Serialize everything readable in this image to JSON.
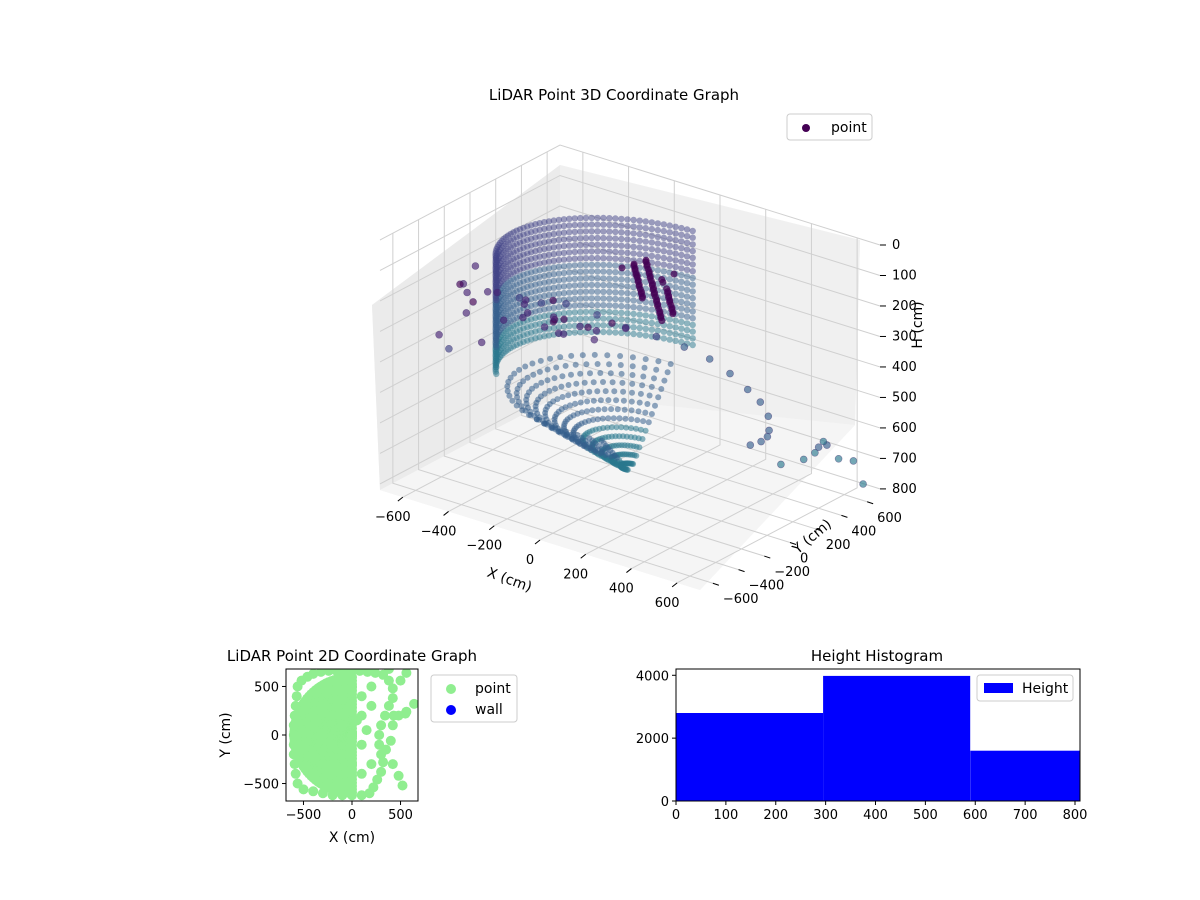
{
  "chart_data": [
    {
      "type": "scatter",
      "dimensions": 3,
      "title": "LiDAR Point 3D Coordinate Graph",
      "xlabel": "X (cm)",
      "ylabel": "Y (cm)",
      "zlabel": "H (cm)",
      "xlim": [
        -700,
        700
      ],
      "ylim": [
        -700,
        700
      ],
      "zlim": [
        820,
        0
      ],
      "x_ticks": [
        -600,
        -400,
        -200,
        0,
        200,
        400,
        600
      ],
      "y_ticks": [
        -600,
        -400,
        -200,
        0,
        200,
        400,
        600
      ],
      "z_ticks": [
        0,
        100,
        200,
        300,
        400,
        500,
        600,
        700,
        800
      ],
      "z_inverted": true,
      "grid": true,
      "legend": [
        "point"
      ],
      "legend_position": "top-right",
      "colormap": "viridis",
      "series": [
        {
          "name": "point",
          "points": [
            [
              -520,
              -560,
              300
            ],
            [
              -500,
              -520,
              350
            ],
            [
              -560,
              -300,
              200
            ],
            [
              -480,
              -420,
              250
            ],
            [
              -420,
              -360,
              180
            ],
            [
              -440,
              -540,
              120
            ],
            [
              -360,
              -580,
              150
            ],
            [
              -300,
              -620,
              260
            ],
            [
              -260,
              -520,
              200
            ],
            [
              -200,
              -440,
              180
            ],
            [
              -160,
              -380,
              230
            ],
            [
              -100,
              -420,
              120
            ],
            [
              -60,
              -480,
              160
            ],
            [
              -20,
              -560,
              140
            ],
            [
              60,
              -620,
              100
            ],
            [
              120,
              -540,
              130
            ],
            [
              180,
              -460,
              120
            ],
            [
              -600,
              -200,
              260
            ],
            [
              -620,
              -100,
              200
            ],
            [
              -580,
              0,
              300
            ],
            [
              -540,
              100,
              330
            ],
            [
              -500,
              200,
              360
            ],
            [
              -460,
              320,
              380
            ],
            [
              -380,
              420,
              420
            ],
            [
              -300,
              500,
              460
            ],
            [
              -200,
              560,
              480
            ],
            [
              -100,
              600,
              500
            ],
            [
              0,
              620,
              520
            ],
            [
              100,
              600,
              540
            ],
            [
              200,
              560,
              560
            ],
            [
              300,
              480,
              560
            ],
            [
              380,
              400,
              570
            ],
            [
              440,
              300,
              580
            ],
            [
              500,
              180,
              560
            ],
            [
              540,
              60,
              540
            ],
            [
              560,
              -60,
              520
            ],
            [
              600,
              400,
              620
            ],
            [
              620,
              520,
              680
            ],
            [
              640,
              600,
              700
            ],
            [
              580,
              500,
              640
            ],
            [
              520,
              580,
              660
            ],
            [
              460,
              620,
              720
            ],
            [
              400,
              640,
              760
            ],
            [
              660,
              640,
              780
            ],
            [
              300,
              640,
              800
            ],
            [
              -200,
              -200,
              300
            ],
            [
              -100,
              -100,
              320
            ],
            [
              -150,
              -250,
              280
            ],
            [
              -250,
              -150,
              270
            ],
            [
              -300,
              -300,
              250
            ],
            [
              -350,
              -200,
              240
            ],
            [
              50,
              -350,
              200
            ],
            [
              150,
              -300,
              180
            ],
            [
              -50,
              -300,
              220
            ],
            [
              -400,
              -100,
              260
            ]
          ]
        }
      ]
    },
    {
      "type": "scatter",
      "dimensions": 2,
      "title": "LiDAR Point 2D Coordinate Graph",
      "xlabel": "X (cm)",
      "ylabel": "Y (cm)",
      "xlim": [
        -680,
        680
      ],
      "ylim": [
        -680,
        680
      ],
      "x_ticks": [
        -500,
        0,
        500
      ],
      "y_ticks": [
        -500,
        0,
        500
      ],
      "legend": [
        "point",
        "wall"
      ],
      "legend_position": "outside-right",
      "series": [
        {
          "name": "point",
          "color": "#90ee90",
          "points": [
            [
              -560,
              500
            ],
            [
              -520,
              560
            ],
            [
              -460,
              600
            ],
            [
              -400,
              630
            ],
            [
              -320,
              650
            ],
            [
              -240,
              660
            ],
            [
              -160,
              660
            ],
            [
              -80,
              660
            ],
            [
              0,
              660
            ],
            [
              80,
              660
            ],
            [
              160,
              650
            ],
            [
              240,
              640
            ],
            [
              320,
              620
            ],
            [
              380,
              560
            ],
            [
              420,
              480
            ],
            [
              420,
              380
            ],
            [
              380,
              300
            ],
            [
              340,
              200
            ],
            [
              300,
              100
            ],
            [
              280,
              0
            ],
            [
              280,
              -100
            ],
            [
              300,
              -200
            ],
            [
              320,
              -280
            ],
            [
              300,
              -380
            ],
            [
              260,
              -460
            ],
            [
              220,
              -540
            ],
            [
              180,
              -600
            ],
            [
              100,
              -620
            ],
            [
              0,
              -620
            ],
            [
              -100,
              -620
            ],
            [
              -200,
              -620
            ],
            [
              -300,
              -600
            ],
            [
              -400,
              -580
            ],
            [
              -500,
              -560
            ],
            [
              -560,
              -500
            ],
            [
              -580,
              -400
            ],
            [
              -590,
              -300
            ],
            [
              -600,
              -200
            ],
            [
              -600,
              -100
            ],
            [
              -600,
              0
            ],
            [
              -600,
              100
            ],
            [
              -590,
              200
            ],
            [
              -580,
              300
            ],
            [
              -570,
              400
            ],
            [
              -300,
              300
            ],
            [
              -200,
              200
            ],
            [
              -100,
              100
            ],
            [
              0,
              0
            ],
            [
              100,
              -100
            ],
            [
              -400,
              -200
            ],
            [
              -300,
              -300
            ],
            [
              -200,
              -400
            ],
            [
              -100,
              -500
            ],
            [
              100,
              200
            ],
            [
              200,
              300
            ],
            [
              -100,
              400
            ],
            [
              0,
              500
            ],
            [
              100,
              400
            ],
            [
              200,
              500
            ],
            [
              -400,
              100
            ],
            [
              -300,
              0
            ],
            [
              -200,
              -100
            ],
            [
              -100,
              -200
            ],
            [
              0,
              -300
            ],
            [
              100,
              -400
            ],
            [
              200,
              -300
            ],
            [
              150,
              50
            ],
            [
              50,
              150
            ],
            [
              -50,
              250
            ],
            [
              -150,
              350
            ],
            [
              -250,
              450
            ],
            [
              380,
              680
            ],
            [
              500,
              560
            ],
            [
              560,
              640
            ],
            [
              480,
              200
            ],
            [
              550,
              220
            ],
            [
              560,
              240
            ],
            [
              640,
              320
            ],
            [
              480,
              -420
            ],
            [
              520,
              -520
            ],
            [
              420,
              -300
            ],
            [
              350,
              -150
            ],
            [
              400,
              -60
            ],
            [
              420,
              100
            ],
            [
              430,
              200
            ],
            [
              -20,
              -560
            ]
          ]
        },
        {
          "name": "wall",
          "color": "#0000ff",
          "points": []
        }
      ]
    },
    {
      "type": "bar",
      "subtype": "histogram",
      "title": "Height Histogram",
      "xlim": [
        0,
        810
      ],
      "ylim": [
        0,
        4200
      ],
      "x_ticks": [
        0,
        100,
        200,
        300,
        400,
        500,
        600,
        700,
        800
      ],
      "y_ticks": [
        0,
        2000,
        4000
      ],
      "legend": [
        "Height"
      ],
      "legend_position": "top-right",
      "series": [
        {
          "name": "Height",
          "color": "#0000ff",
          "bins": [
            {
              "start": 0,
              "end": 295,
              "count": 2800
            },
            {
              "start": 295,
              "end": 590,
              "count": 3980
            },
            {
              "start": 590,
              "end": 810,
              "count": 1600
            }
          ]
        }
      ]
    }
  ]
}
